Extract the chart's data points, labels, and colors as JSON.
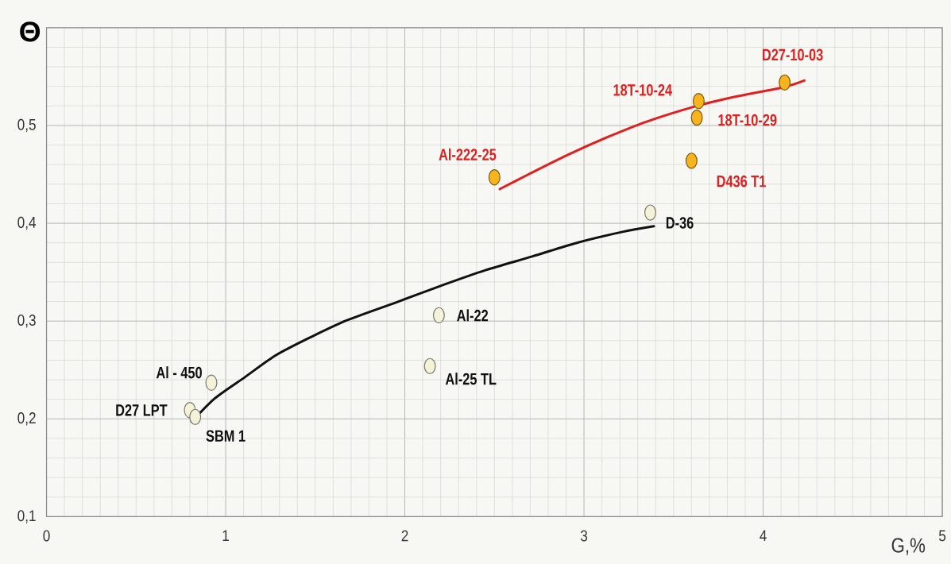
{
  "chart_data": {
    "type": "scatter",
    "xlabel": "G,%",
    "ylabel": "Θ",
    "xlim": [
      0,
      5
    ],
    "ylim": [
      0.1,
      0.6
    ],
    "xticks": [
      0,
      1,
      2,
      3,
      4,
      5
    ],
    "yticks": [
      {
        "value": 0.1,
        "label": "0,1"
      },
      {
        "value": 0.2,
        "label": "0,2"
      },
      {
        "value": 0.3,
        "label": "0,3"
      },
      {
        "value": 0.4,
        "label": "0,4"
      },
      {
        "value": 0.5,
        "label": "0,5"
      }
    ],
    "grid": true,
    "marker": "circle",
    "series": [
      {
        "color": "#f4f2d8",
        "x": [
          0.92,
          0.8,
          0.83,
          2.19,
          2.14,
          3.37
        ],
        "values": [
          0.237,
          0.209,
          0.202,
          0.306,
          0.254,
          0.411
        ]
      },
      {
        "type": "line",
        "color": "#111111",
        "marker": "none",
        "x": [
          0.81,
          0.94,
          1.11,
          1.28,
          1.48,
          1.68,
          1.95,
          2.2,
          2.45,
          2.71,
          2.96,
          3.21,
          3.39
        ],
        "values": [
          0.197,
          0.221,
          0.243,
          0.265,
          0.284,
          0.301,
          0.319,
          0.336,
          0.352,
          0.366,
          0.38,
          0.391,
          0.397
        ]
      },
      {
        "color": "#f7b41c",
        "x": [
          2.5,
          3.64,
          3.63,
          3.6,
          4.12
        ],
        "values": [
          0.447,
          0.525,
          0.508,
          0.464,
          0.544
        ]
      },
      {
        "type": "line",
        "color": "#e11f1f",
        "marker": "none",
        "x": [
          2.53,
          2.69,
          2.91,
          3.13,
          3.35,
          3.63,
          3.86,
          4.11,
          4.23
        ],
        "values": [
          0.435,
          0.45,
          0.47,
          0.488,
          0.504,
          0.52,
          0.53,
          0.539,
          0.546
        ]
      }
    ],
    "annotations": [
      {
        "text": "Al - 450",
        "x": 0.92,
        "y": 0.237
      },
      {
        "text": "D27 LPT",
        "x": 0.8,
        "y": 0.209
      },
      {
        "text": "SBM 1",
        "x": 0.83,
        "y": 0.202
      },
      {
        "text": "Al-22",
        "x": 2.19,
        "y": 0.306
      },
      {
        "text": "Al-25 TL",
        "x": 2.14,
        "y": 0.254
      },
      {
        "text": "D-36",
        "x": 3.37,
        "y": 0.411
      },
      {
        "text": "Al-222-25",
        "x": 2.5,
        "y": 0.447
      },
      {
        "text": "18T-10-24",
        "x": 3.64,
        "y": 0.525
      },
      {
        "text": "18T-10-29",
        "x": 3.63,
        "y": 0.508
      },
      {
        "text": "D436 T1",
        "x": 3.6,
        "y": 0.464
      },
      {
        "text": "D27-10-03",
        "x": 4.12,
        "y": 0.544
      }
    ]
  }
}
